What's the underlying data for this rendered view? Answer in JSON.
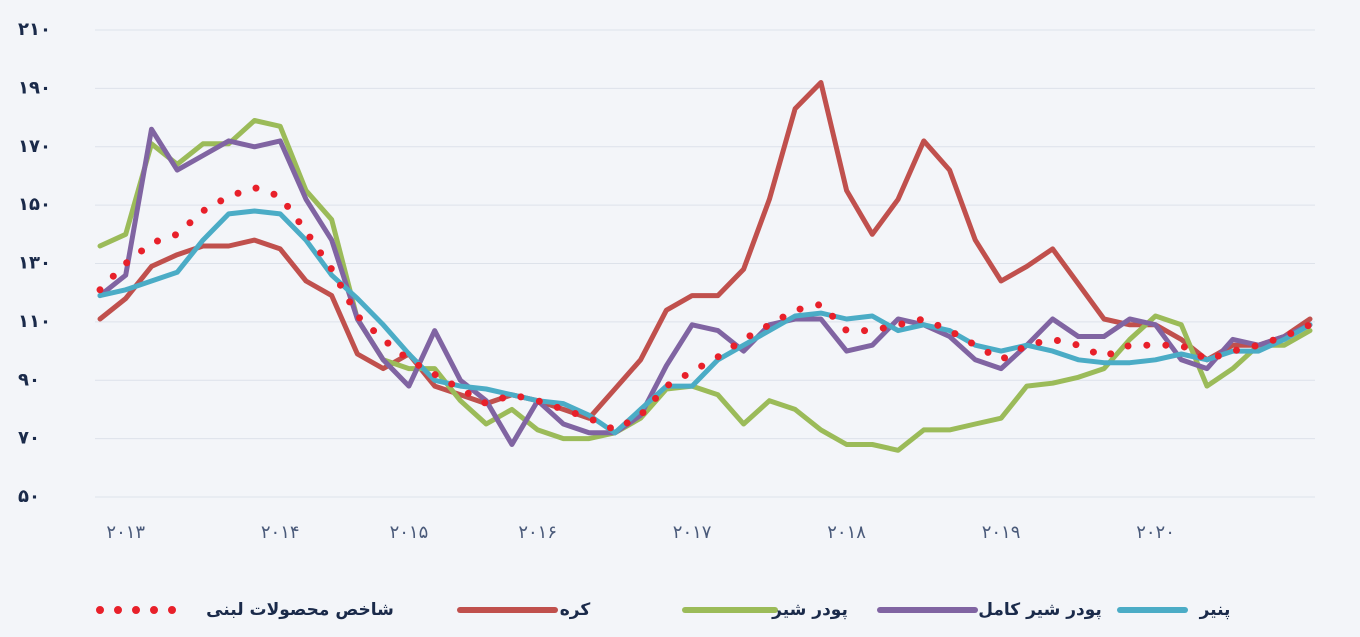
{
  "chart_data": {
    "type": "line",
    "categories": [
      null,
      "۲۰۱۳",
      null,
      null,
      null,
      null,
      null,
      "۲۰۱۴",
      null,
      null,
      null,
      null,
      "۲۰۱۵",
      null,
      null,
      null,
      null,
      "۲۰۱۶",
      null,
      null,
      null,
      null,
      null,
      "۲۰۱۷",
      null,
      null,
      null,
      null,
      null,
      "۲۰۱۸",
      null,
      null,
      null,
      null,
      null,
      "۲۰۱۹",
      null,
      null,
      null,
      null,
      null,
      "۲۰۲۰",
      null,
      null,
      null,
      null,
      null,
      null
    ],
    "series": [
      {
        "name": "شاخص محصولات لبنی",
        "color": "#e8202a",
        "style": "dotted",
        "values": [
          121,
          130,
          137,
          140,
          148,
          153,
          156,
          153,
          141,
          128,
          112,
          104,
          97,
          92,
          87,
          82,
          85,
          83,
          80,
          77,
          73,
          78,
          88,
          93,
          98,
          104,
          109,
          114,
          116,
          107,
          107,
          109,
          111,
          107,
          102,
          97,
          102,
          104,
          102,
          98,
          102,
          102,
          102,
          97,
          100,
          102,
          105,
          109
        ]
      },
      {
        "name": "کره",
        "color": "#c0504d",
        "style": "solid",
        "values": [
          111,
          118,
          129,
          133,
          136,
          136,
          138,
          135,
          124,
          119,
          99,
          94,
          99,
          88,
          85,
          82,
          85,
          83,
          80,
          77,
          87,
          97,
          114,
          119,
          119,
          128,
          152,
          183,
          192,
          155,
          140,
          152,
          172,
          162,
          138,
          124,
          129,
          135,
          123,
          111,
          109,
          109,
          104,
          97,
          102,
          102,
          105,
          111
        ]
      },
      {
        "name": "پودر شیر",
        "color": "#9bbb59",
        "style": "solid",
        "values": [
          136,
          140,
          171,
          164,
          171,
          171,
          179,
          177,
          155,
          145,
          111,
          97,
          94,
          94,
          83,
          75,
          80,
          73,
          70,
          70,
          72,
          77,
          87,
          88,
          85,
          75,
          83,
          80,
          73,
          68,
          68,
          66,
          73,
          73,
          75,
          77,
          88,
          89,
          91,
          94,
          104,
          112,
          109,
          88,
          94,
          102,
          102,
          107
        ]
      },
      {
        "name": "پودر شیر کامل",
        "color": "#8064a2",
        "style": "solid",
        "values": [
          119,
          126,
          176,
          162,
          167,
          172,
          170,
          172,
          152,
          138,
          111,
          97,
          88,
          107,
          90,
          83,
          68,
          83,
          75,
          72,
          72,
          78,
          95,
          109,
          107,
          100,
          109,
          111,
          111,
          100,
          102,
          111,
          109,
          105,
          97,
          94,
          102,
          111,
          105,
          105,
          111,
          109,
          97,
          94,
          104,
          102,
          105,
          109
        ]
      },
      {
        "name": "پنیر",
        "color": "#4bacc6",
        "style": "solid",
        "values": [
          119,
          121,
          124,
          127,
          138,
          147,
          148,
          147,
          138,
          126,
          118,
          109,
          99,
          90,
          88,
          87,
          85,
          83,
          82,
          78,
          72,
          80,
          88,
          88,
          97,
          102,
          107,
          112,
          113,
          111,
          112,
          107,
          109,
          107,
          102,
          100,
          102,
          100,
          97,
          96,
          96,
          97,
          99,
          97,
          100,
          100,
          104,
          109
        ]
      }
    ],
    "ylim": [
      50,
      210
    ],
    "yticks": [
      {
        "value": 50,
        "label": "۵۰"
      },
      {
        "value": 70,
        "label": "۷۰"
      },
      {
        "value": 90,
        "label": "۹۰"
      },
      {
        "value": 110,
        "label": "۱۱۰"
      },
      {
        "value": 130,
        "label": "۱۳۰"
      },
      {
        "value": 150,
        "label": "۱۵۰"
      },
      {
        "value": 170,
        "label": "۱۷۰"
      },
      {
        "value": 190,
        "label": "۱۹۰"
      },
      {
        "value": 210,
        "label": "۲۱۰"
      }
    ],
    "grid": true,
    "legend": "bottom"
  }
}
